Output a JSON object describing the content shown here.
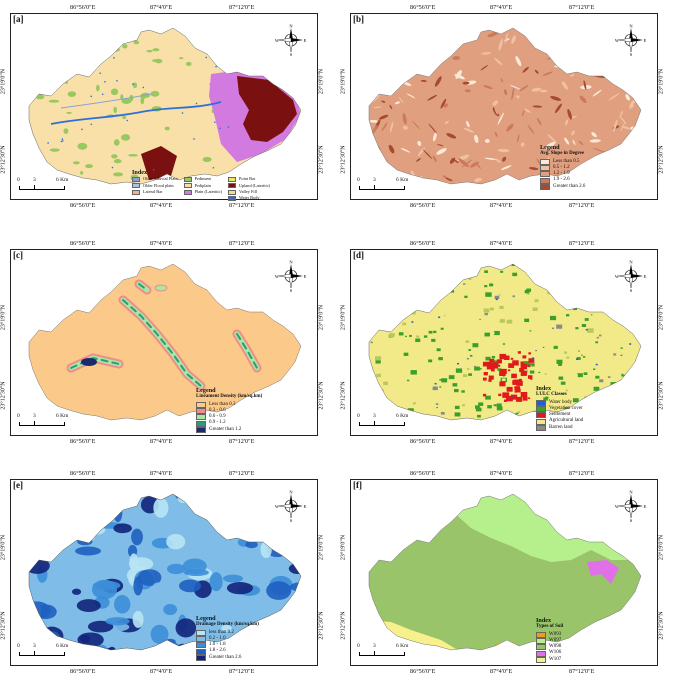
{
  "coords": {
    "lon": [
      "86°56'0\"E",
      "87°4'0\"E",
      "87°12'0\"E"
    ],
    "lat": [
      "23°19'0\"N",
      "23°12'30\"N"
    ]
  },
  "compass": {
    "n": "N",
    "s": "S",
    "e": "E",
    "w": "W"
  },
  "scalebar": {
    "zero": "0",
    "mid": "3",
    "end": "6 Km"
  },
  "panels": [
    {
      "label": "[a]",
      "legend": {
        "title": "Index",
        "items": [
          {
            "label": "Older Alluvial Plain",
            "color": "#8aa0d8"
          },
          {
            "label": "Older Flood plain",
            "color": "#a6c4e8"
          },
          {
            "label": "Lateral Bar",
            "color": "#f4b28c"
          },
          {
            "label": "Pediment",
            "color": "#98c860"
          },
          {
            "label": "Pediplain",
            "color": "#f8e0a8"
          },
          {
            "label": "Plain (Lateritic)",
            "color": "#d27ae0"
          },
          {
            "label": "Point Bar",
            "color": "#e8e860"
          },
          {
            "label": "Upland (Lateritic)",
            "color": "#7a1010"
          },
          {
            "label": "Valley Fill",
            "color": "#eedc98"
          },
          {
            "label": "Water Body",
            "color": "#2f6fd8"
          }
        ]
      }
    },
    {
      "label": "[b]",
      "legend": {
        "title": "Legend",
        "subtitle": "Avg. Slope in Degree",
        "items": [
          {
            "label": "Less than 0.5",
            "color": "#fbe8d8"
          },
          {
            "label": "0.5 - 1.2",
            "color": "#f0c0a0"
          },
          {
            "label": "1.2 - 1.9",
            "color": "#e0a080"
          },
          {
            "label": "1.9 - 2.6",
            "color": "#cc7a5c"
          },
          {
            "label": "Greater than 2.6",
            "color": "#a84a30"
          }
        ]
      }
    },
    {
      "label": "[c]",
      "legend": {
        "title": "Legend",
        "subtitle": "Lineament Density (km/sq.km)",
        "items": [
          {
            "label": "Less than 0.3",
            "color": "#fbc98a"
          },
          {
            "label": "0.3 - 0.6",
            "color": "#f08c8c"
          },
          {
            "label": "0.6 - 0.9",
            "color": "#a8e8a0"
          },
          {
            "label": "0.9 - 1.2",
            "color": "#2e9a78"
          },
          {
            "label": "Greater than 1.2",
            "color": "#1a2a6c"
          }
        ]
      }
    },
    {
      "label": "[d]",
      "legend": {
        "title": "Index",
        "subtitle": "LULC Classes",
        "items": [
          {
            "label": "Water body",
            "color": "#1f5fd8"
          },
          {
            "label": "Vegetation cover",
            "color": "#3aa02a"
          },
          {
            "label": "Settlement",
            "color": "#e01a1a"
          },
          {
            "label": "Agricultural land",
            "color": "#f2ea88"
          },
          {
            "label": "Barren land",
            "color": "#8a8a8a"
          }
        ]
      }
    },
    {
      "label": "[e]",
      "legend": {
        "title": "Legend",
        "subtitle": "Drainage Density (km/sq.km)",
        "items": [
          {
            "label": "less than 0.2",
            "color": "#b8e4f4"
          },
          {
            "label": "0.2 - 1.0",
            "color": "#7fbde8"
          },
          {
            "label": "1.0 - 1.8",
            "color": "#3c8ed8"
          },
          {
            "label": "1.8 - 2.6",
            "color": "#1f5fc0"
          },
          {
            "label": "Greater than 2.6",
            "color": "#12247a"
          }
        ]
      }
    },
    {
      "label": "[f]",
      "legend": {
        "title": "Index",
        "subtitle": "Types of Soil",
        "items": [
          {
            "label": "W093",
            "color": "#f39c12"
          },
          {
            "label": "W097",
            "color": "#b6f08c"
          },
          {
            "label": "W098",
            "color": "#9ac46a"
          },
          {
            "label": "W106",
            "color": "#e070e8"
          },
          {
            "label": "W107",
            "color": "#f8f08c"
          }
        ]
      }
    }
  ]
}
